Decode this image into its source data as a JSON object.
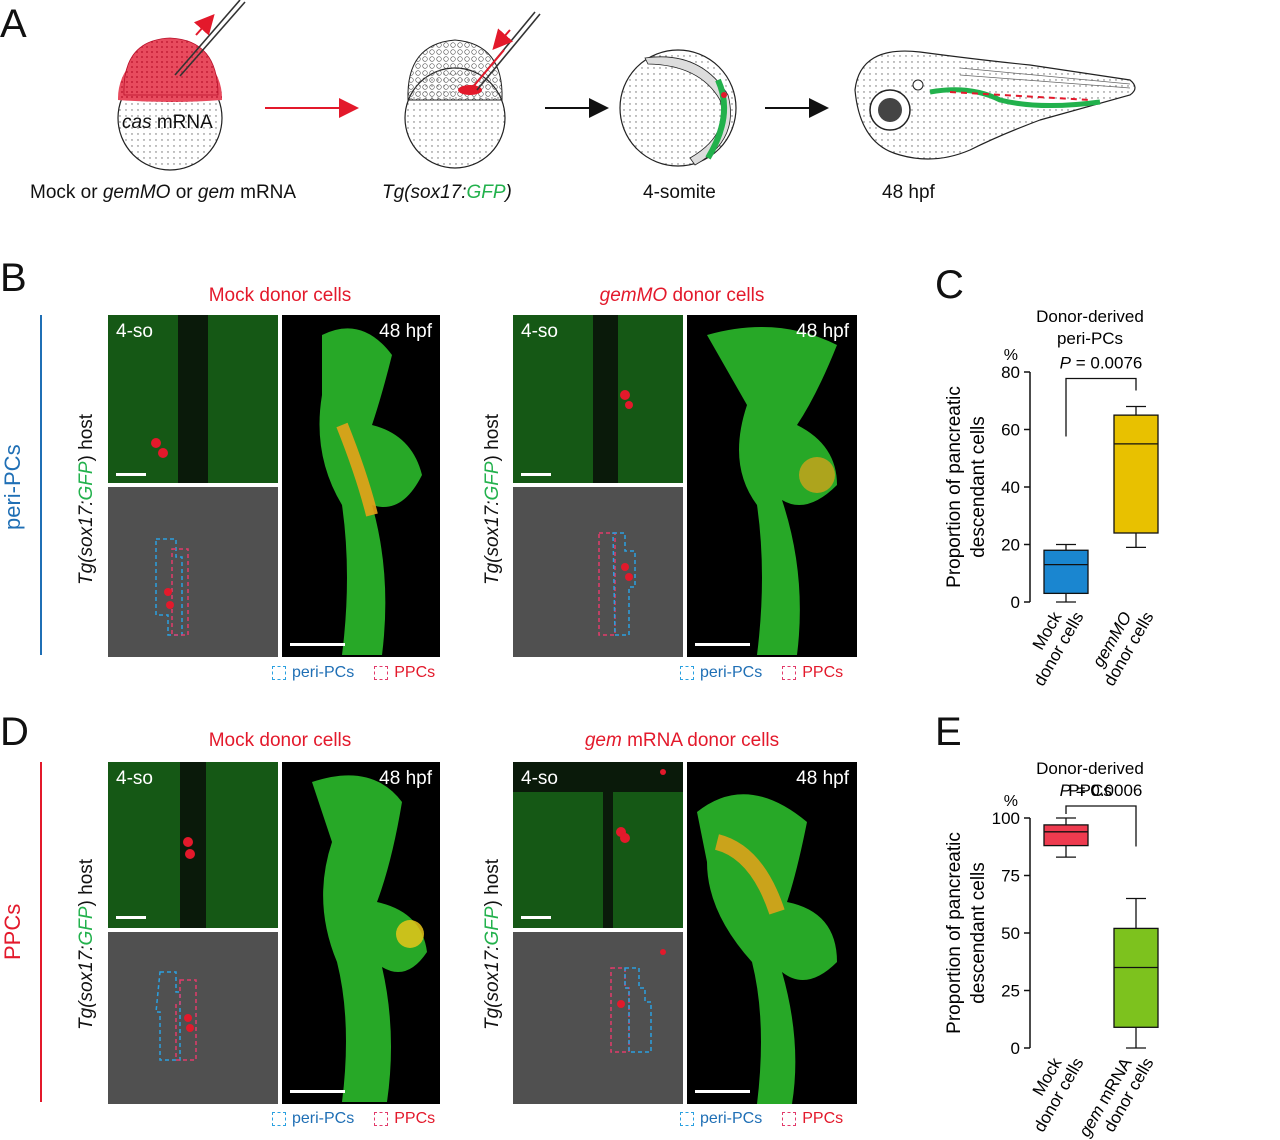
{
  "panel_letters": {
    "A": "A",
    "B": "B",
    "C": "C",
    "D": "D",
    "E": "E"
  },
  "panelA": {
    "cas_label_italic": "cas",
    "cas_label_rest": " mRNA",
    "step1_caption": [
      "Mock or ",
      "gemMO",
      " or ",
      "gem",
      " mRNA"
    ],
    "step2_caption_pre": "Tg(sox17:",
    "step2_caption_gfp": "GFP",
    "step2_caption_post": ")",
    "step3_caption": "4-somite",
    "step4_caption": "48 hpf"
  },
  "panelB": {
    "side_label": "peri-PCs",
    "left_title": "Mock donor cells",
    "right_title_italic": "gemMO",
    "right_title_rest": " donor cells",
    "tag_4so": "4-so",
    "tag_48": "48 hpf",
    "host_pre": "Tg(sox17:",
    "host_gfp": "GFP",
    "host_post": ") host",
    "legend_peri": "peri-PCs",
    "legend_ppc": "PPCs"
  },
  "panelD": {
    "side_label": "PPCs",
    "left_title": "Mock donor cells",
    "right_title_italic": "gem",
    "right_title_rest": " mRNA donor cells",
    "tag_4so": "4-so",
    "tag_48": "48 hpf",
    "host_pre": "Tg(sox17:",
    "host_gfp": "GFP",
    "host_post": ") host",
    "legend_peri": "peri-PCs",
    "legend_ppc": "PPCs"
  },
  "colors": {
    "mock_box_C": "#1a86d0",
    "gem_box_C": "#e8c100",
    "mock_box_E": "#ee3b4f",
    "gem_box_E": "#7dc21e",
    "red": "#e3192b",
    "blue": "#1f6fb5",
    "gfp_green": "#22b14c"
  },
  "chart_data": [
    {
      "type": "box",
      "title": "Donor-derived\nperi-PCs",
      "ylabel": "Proportion of pancreatic\ndescendant cells",
      "yunit": "%",
      "ylim": [
        0,
        80
      ],
      "yticks": [
        0,
        20,
        40,
        60,
        80
      ],
      "categories": [
        "Mock\ndonor cells",
        "gemMO\ndonor cells"
      ],
      "boxes": [
        {
          "min": 0,
          "q1": 3,
          "median": 13,
          "q3": 18,
          "max": 20
        },
        {
          "min": 19,
          "q1": 24,
          "median": 55,
          "q3": 65,
          "max": 68
        }
      ],
      "annotation": "P = 0.0076"
    },
    {
      "type": "box",
      "title": "Donor-derived\nPPCs",
      "ylabel": "Proportion of pancreatic\ndescendant cells",
      "yunit": "%",
      "ylim": [
        0,
        100
      ],
      "yticks": [
        0,
        25,
        50,
        75,
        100
      ],
      "categories": [
        "Mock\ndonor cells",
        "gem mRNA\ndonor cells"
      ],
      "boxes": [
        {
          "min": 83,
          "q1": 88,
          "median": 94,
          "q3": 97,
          "max": 100
        },
        {
          "min": 0,
          "q1": 9,
          "median": 35,
          "q3": 52,
          "max": 65
        }
      ],
      "annotation": "P = 0.0006"
    }
  ]
}
